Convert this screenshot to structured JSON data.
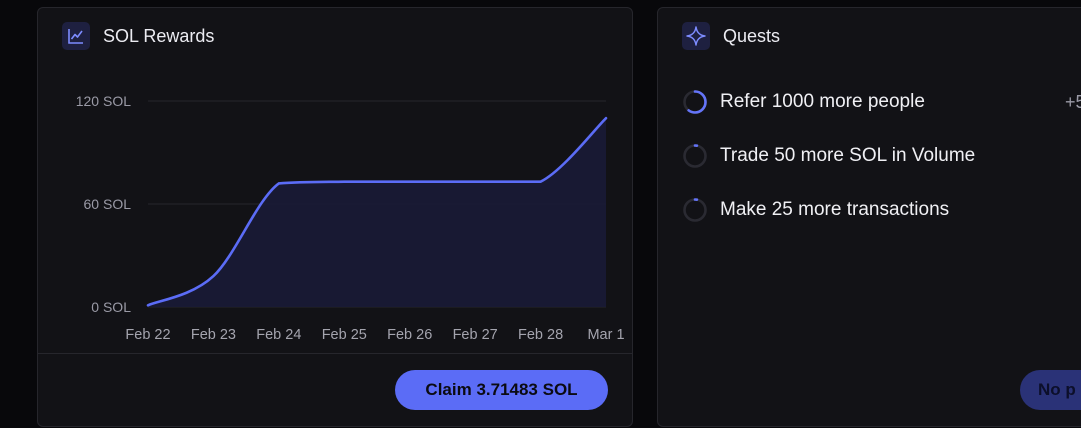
{
  "rewards": {
    "title": "SOL Rewards",
    "icon": "chart-line-icon",
    "claim_label": "Claim 3.71483 SOL"
  },
  "quests": {
    "title": "Quests",
    "icon": "sparkle-icon",
    "items": [
      {
        "label": "Refer 1000 more people",
        "reward": "+5",
        "progress": 0.6
      },
      {
        "label": "Trade 50 more SOL in Volume",
        "progress": 0.03
      },
      {
        "label": "Make 25 more transactions",
        "progress": 0.03
      }
    ],
    "button_label": "No p"
  },
  "colors": {
    "accent": "#5b6cf6",
    "panel_bg": "#121216",
    "page_bg": "#08080b",
    "area_fill": "#1a1b36"
  },
  "chart_data": {
    "type": "area",
    "x": [
      "Feb 22",
      "Feb 23",
      "Feb 24",
      "Feb 25",
      "Feb 26",
      "Feb 27",
      "Feb 28",
      "Mar 1"
    ],
    "y_ticks": [
      0,
      60,
      120
    ],
    "y_tick_labels": [
      "0 SOL",
      "60 SOL",
      "120 SOL"
    ],
    "ylim": [
      0,
      120
    ],
    "grid": true,
    "series": [
      {
        "values": [
          1,
          18,
          72,
          73,
          73,
          73,
          73,
          110
        ]
      }
    ]
  }
}
